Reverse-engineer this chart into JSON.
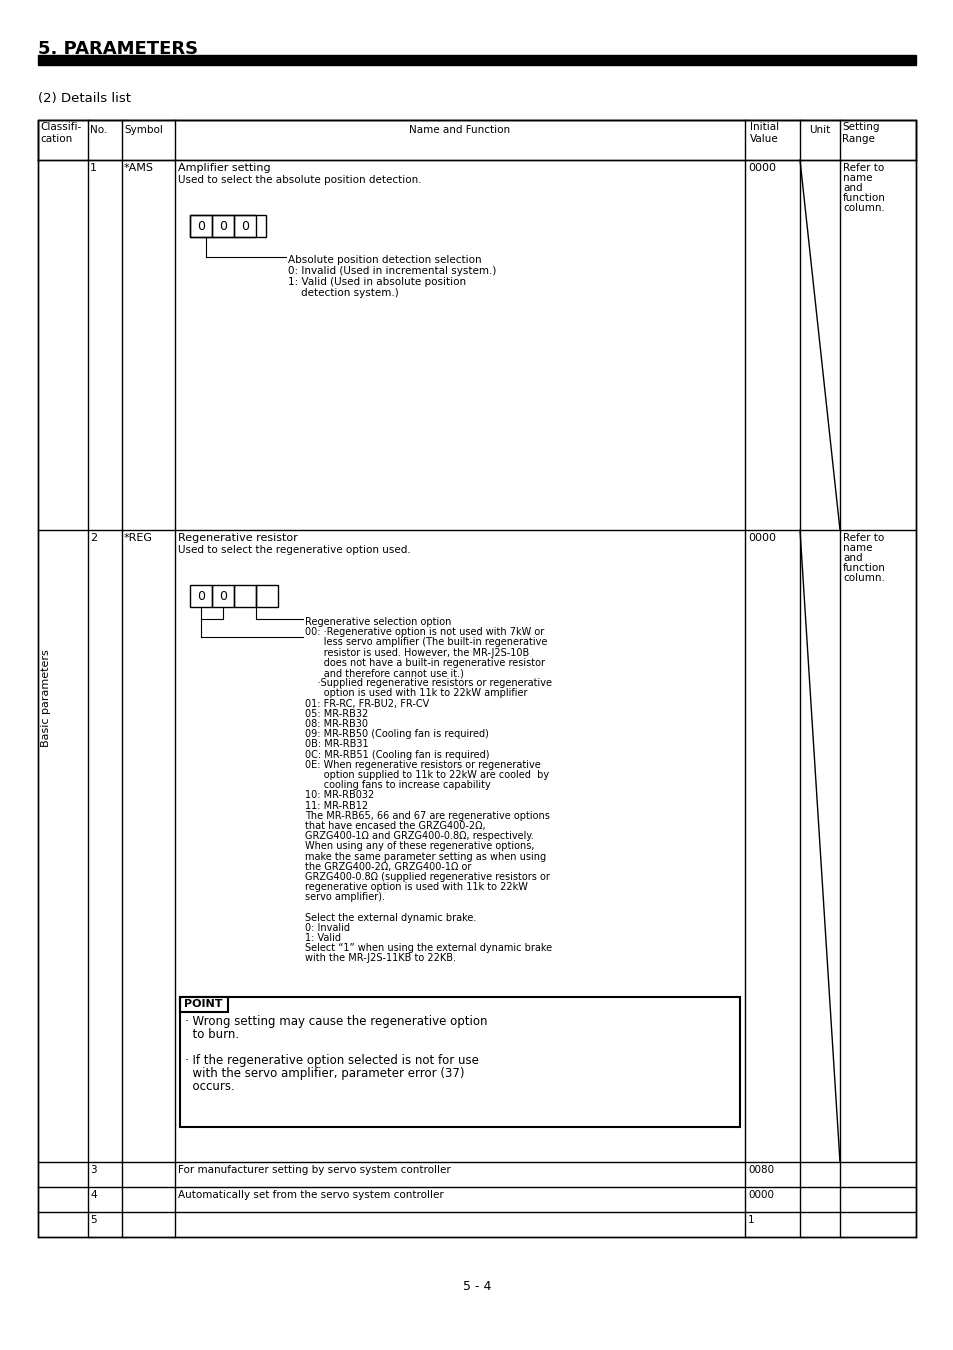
{
  "title": "5. PARAMETERS",
  "subtitle": "(2) Details list",
  "page_footer": "5 - 4",
  "bg_color": "#ffffff",
  "header_cols": [
    "Classifi-\ncation",
    "No.",
    "Symbol",
    "Name and Function",
    "Initial\nValue",
    "Unit",
    "Setting\nRange"
  ],
  "rows": [
    {
      "no": "1",
      "symbol": "*AMS",
      "initial": "0000",
      "unit": "",
      "setting": "Refer to\nname\nand\nfunction\ncolumn.",
      "name": "Amplifier setting",
      "desc": "Used to select the absolute position detection."
    },
    {
      "no": "2",
      "symbol": "*REG",
      "initial": "0000",
      "unit": "",
      "setting": "Refer to\nname\nand\nfunction\ncolumn.",
      "name": "Regenerative resistor",
      "desc": "Used to select the regenerative option used."
    },
    {
      "no": "3",
      "symbol": "",
      "initial": "0080",
      "unit": "",
      "setting": "",
      "name": "For manufacturer setting by servo system controller",
      "desc": ""
    },
    {
      "no": "4",
      "symbol": "",
      "initial": "0000",
      "unit": "",
      "setting": "",
      "name": "Automatically set from the servo system controller",
      "desc": ""
    },
    {
      "no": "5",
      "symbol": "",
      "initial": "1",
      "unit": "",
      "setting": "",
      "name": "",
      "desc": ""
    }
  ],
  "side_label": "Basic parameters",
  "ams_box_text": [
    "0",
    "0",
    "0"
  ],
  "reg_box_text": [
    "0",
    "0"
  ],
  "ams_arrow_text": [
    "Absolute position detection selection",
    "0: Invalid (Used in incremental system.)",
    "1: Valid (Used in absolute position",
    "    detection system.)"
  ],
  "reg_arrow_text1": [
    "Regenerative selection option",
    "00: ·Regenerative option is not used with 7kW or",
    "      less servo amplifier (The built-in regenerative",
    "      resistor is used. However, the MR-J2S-10B",
    "      does not have a built-in regenerative resistor",
    "      and therefore cannot use it.)",
    "    ·Supplied regenerative resistors or regenerative",
    "      option is used with 11k to 22kW amplifier",
    "01: FR-RC, FR-BU2, FR-CV",
    "05: MR-RB32",
    "08: MR-RB30",
    "09: MR-RB50 (Cooling fan is required)",
    "0B: MR-RB31",
    "0C: MR-RB51 (Cooling fan is required)",
    "0E: When regenerative resistors or regenerative",
    "      option supplied to 11k to 22kW are cooled  by",
    "      cooling fans to increase capability",
    "10: MR-RB032",
    "11: MR-RB12",
    "The MR-RB65, 66 and 67 are regenerative options",
    "that have encased the GRZG400-2Ω,",
    "GRZG400-1Ω and GRZG400-0.8Ω, respectively.",
    "When using any of these regenerative options,",
    "make the same parameter setting as when using",
    "the GRZG400-2Ω, GRZG400-1Ω or",
    "GRZG400-0.8Ω (supplied regenerative resistors or",
    "regenerative option is used with 11k to 22kW",
    "servo amplifier)."
  ],
  "reg_arrow_text2": [
    "Select the external dynamic brake.",
    "0: Invalid",
    "1: Valid",
    "Select “1” when using the external dynamic brake",
    "with the MR-J2S-11KB to 22KB."
  ],
  "point_text": [
    "· Wrong setting may cause the regenerative option",
    "  to burn.",
    "",
    "· If the regenerative option selected is not for use",
    "  with the servo amplifier, parameter error (37)",
    "  occurs."
  ]
}
